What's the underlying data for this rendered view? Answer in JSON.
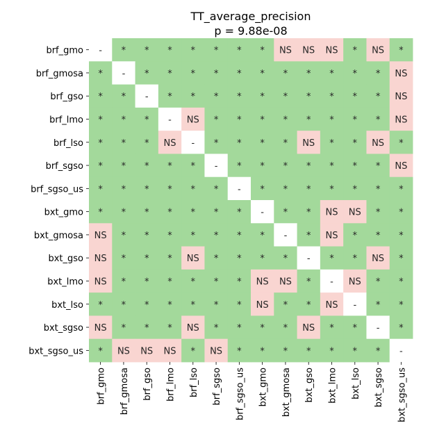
{
  "chart_data": {
    "type": "heatmap",
    "title": "TT_average_precision",
    "subtitle": "p = 9.88e-08",
    "labels": [
      "brf_gmo",
      "brf_gmosa",
      "brf_gso",
      "brf_lmo",
      "brf_lso",
      "brf_sgso",
      "brf_sgso_us",
      "bxt_gmo",
      "bxt_gmosa",
      "bxt_gso",
      "bxt_lmo",
      "bxt_lso",
      "bxt_sgso",
      "bxt_sgso_us"
    ],
    "matrix": [
      [
        "-",
        "*",
        "*",
        "*",
        "*",
        "*",
        "*",
        "*",
        "NS",
        "NS",
        "NS",
        "*",
        "NS",
        "*"
      ],
      [
        "*",
        "-",
        "*",
        "*",
        "*",
        "*",
        "*",
        "*",
        "*",
        "*",
        "*",
        "*",
        "*",
        "NS"
      ],
      [
        "*",
        "*",
        "-",
        "*",
        "*",
        "*",
        "*",
        "*",
        "*",
        "*",
        "*",
        "*",
        "*",
        "NS"
      ],
      [
        "*",
        "*",
        "*",
        "-",
        "NS",
        "*",
        "*",
        "*",
        "*",
        "*",
        "*",
        "*",
        "*",
        "NS"
      ],
      [
        "*",
        "*",
        "*",
        "NS",
        "-",
        "*",
        "*",
        "*",
        "*",
        "NS",
        "*",
        "*",
        "NS",
        "*"
      ],
      [
        "*",
        "*",
        "*",
        "*",
        "*",
        "-",
        "*",
        "*",
        "*",
        "*",
        "*",
        "*",
        "*",
        "NS"
      ],
      [
        "*",
        "*",
        "*",
        "*",
        "*",
        "*",
        "-",
        "*",
        "*",
        "*",
        "*",
        "*",
        "*",
        "*"
      ],
      [
        "*",
        "*",
        "*",
        "*",
        "*",
        "*",
        "*",
        "-",
        "*",
        "*",
        "NS",
        "NS",
        "*",
        "*"
      ],
      [
        "NS",
        "*",
        "*",
        "*",
        "*",
        "*",
        "*",
        "*",
        "-",
        "*",
        "NS",
        "*",
        "*",
        "*"
      ],
      [
        "NS",
        "*",
        "*",
        "*",
        "NS",
        "*",
        "*",
        "*",
        "*",
        "-",
        "*",
        "*",
        "NS",
        "*"
      ],
      [
        "NS",
        "*",
        "*",
        "*",
        "*",
        "*",
        "*",
        "NS",
        "NS",
        "*",
        "-",
        "NS",
        "*",
        "*"
      ],
      [
        "*",
        "*",
        "*",
        "*",
        "*",
        "*",
        "*",
        "NS",
        "*",
        "*",
        "NS",
        "-",
        "*",
        "*"
      ],
      [
        "NS",
        "*",
        "*",
        "*",
        "NS",
        "*",
        "*",
        "*",
        "*",
        "NS",
        "*",
        "*",
        "-",
        "*"
      ],
      [
        "*",
        "NS",
        "NS",
        "NS",
        "*",
        "NS",
        "*",
        "*",
        "*",
        "*",
        "*",
        "*",
        "*",
        "-"
      ]
    ],
    "colors": {
      "significant": "#a3d99b",
      "not_significant": "#f9d5d1",
      "diagonal": "#ffffff"
    },
    "legend": "none",
    "grid": false
  }
}
